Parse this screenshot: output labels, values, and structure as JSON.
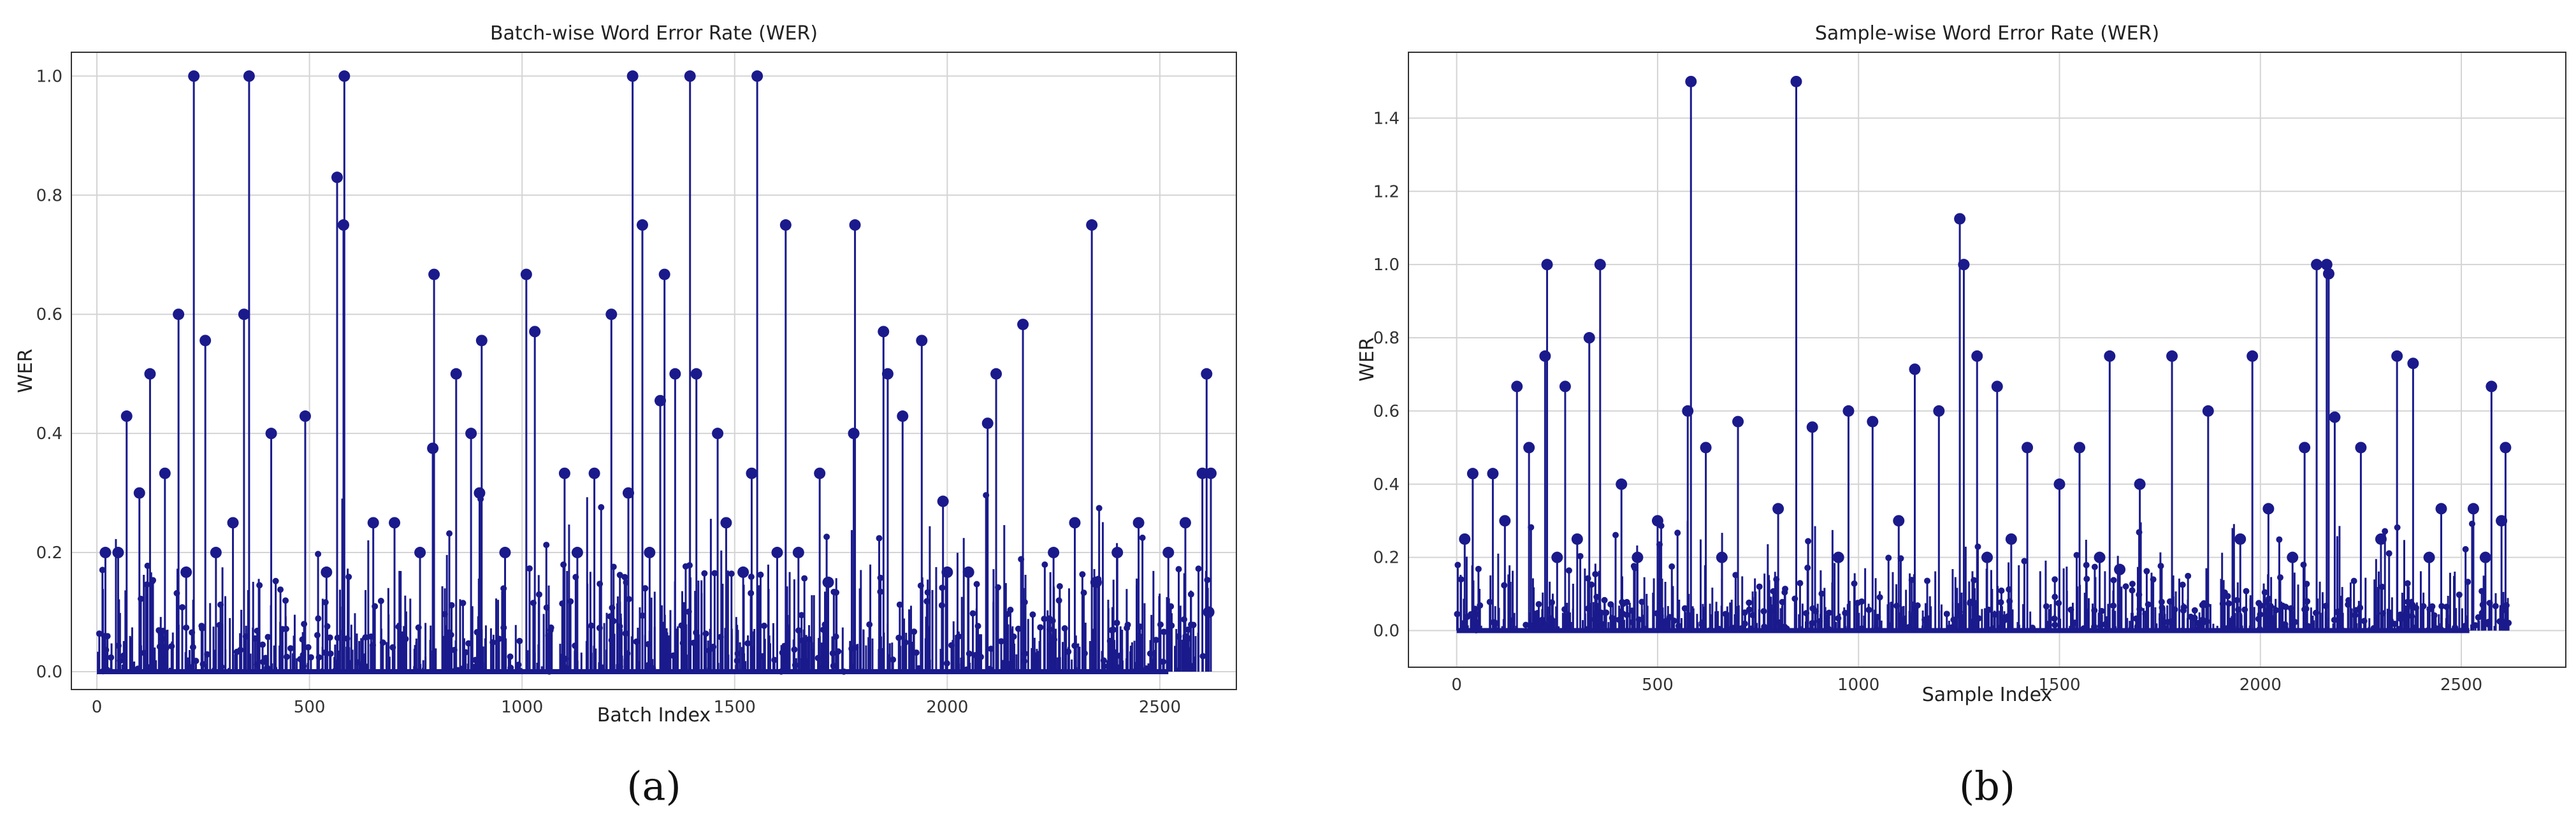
{
  "chart_data": [
    {
      "type": "scatter",
      "title": "Batch-wise Word Error Rate (WER)",
      "xlabel": "Batch Index",
      "ylabel": "WER",
      "xlim": [
        -60,
        2680
      ],
      "ylim": [
        -0.03,
        1.04
      ],
      "xticks": [
        0,
        500,
        1000,
        1500,
        2000,
        2500
      ],
      "yticks": [
        0.0,
        0.2,
        0.4,
        0.6,
        0.8,
        1.0
      ],
      "ytick_decimals": 1,
      "grid": true,
      "style": "stem",
      "color": "#1a1a8c",
      "caption": "(a)",
      "x": [
        228,
        358,
        582,
        1260,
        1395,
        1553,
        565,
        580,
        1283,
        1620,
        1783,
        2340,
        793,
        1010,
        1210,
        1335,
        2178,
        192,
        346,
        1850,
        1940,
        1030,
        1360,
        255,
        905,
        1410,
        1460,
        1860,
        2115,
        2610,
        125,
        845,
        880,
        1325,
        2095,
        70,
        1170,
        1895,
        790,
        1780,
        1250,
        1540,
        160,
        410,
        490,
        1100,
        1700,
        1990,
        2300,
        2560,
        100,
        320,
        700,
        960,
        1480,
        1650,
        2250,
        2450,
        2600,
        50,
        280,
        650,
        900,
        1300,
        1600,
        2000,
        2400,
        2620,
        20,
        210,
        540,
        760,
        1130,
        1520,
        1720,
        2050,
        2350,
        2520,
        2615
      ],
      "y": [
        1.0,
        1.0,
        1.0,
        1.0,
        1.0,
        1.0,
        0.83,
        0.75,
        0.75,
        0.75,
        0.75,
        0.75,
        0.667,
        0.667,
        0.6,
        0.667,
        0.583,
        0.6,
        0.6,
        0.571,
        0.556,
        0.571,
        0.5,
        0.556,
        0.556,
        0.5,
        0.4,
        0.5,
        0.5,
        0.5,
        0.5,
        0.5,
        0.4,
        0.455,
        0.417,
        0.429,
        0.333,
        0.429,
        0.375,
        0.4,
        0.3,
        0.333,
        0.333,
        0.4,
        0.429,
        0.333,
        0.333,
        0.286,
        0.25,
        0.25,
        0.3,
        0.25,
        0.25,
        0.2,
        0.25,
        0.2,
        0.2,
        0.25,
        0.333,
        0.2,
        0.2,
        0.25,
        0.3,
        0.2,
        0.2,
        0.167,
        0.2,
        0.333,
        0.2,
        0.167,
        0.167,
        0.2,
        0.2,
        0.167,
        0.15,
        0.167,
        0.15,
        0.2,
        0.1
      ]
    },
    {
      "type": "scatter",
      "title": "Sample-wise Word Error Rate (WER)",
      "xlabel": "Sample Index",
      "ylabel": "WER",
      "xlim": [
        -120,
        2760
      ],
      "ylim": [
        -0.1,
        1.58
      ],
      "xticks": [
        0,
        500,
        1000,
        1500,
        2000,
        2500
      ],
      "yticks": [
        0.0,
        0.2,
        0.4,
        0.6,
        0.8,
        1.0,
        1.2,
        1.4
      ],
      "ytick_decimals": 1,
      "grid": true,
      "style": "stem",
      "color": "#1a1a8c",
      "caption": "(b)",
      "x": [
        583,
        845,
        1252,
        225,
        357,
        1262,
        2140,
        2165,
        2170,
        330,
        1295,
        2340,
        220,
        1625,
        1780,
        1980,
        2380,
        270,
        575,
        1345,
        2575,
        1140,
        1200,
        150,
        975,
        1035,
        1550,
        1870,
        2185,
        2110,
        40,
        410,
        700,
        885,
        1420,
        2250,
        2610,
        90,
        180,
        620,
        1500,
        1700,
        2020,
        2450,
        2530,
        120,
        300,
        500,
        800,
        1100,
        1380,
        1600,
        1950,
        2300,
        2600,
        20,
        250,
        450,
        660,
        950,
        1320,
        1650,
        2080,
        2420,
        2560
      ],
      "y": [
        1.5,
        1.5,
        1.125,
        1.0,
        1.0,
        1.0,
        1.0,
        1.0,
        0.975,
        0.8,
        0.75,
        0.75,
        0.75,
        0.75,
        0.75,
        0.75,
        0.73,
        0.667,
        0.6,
        0.667,
        0.667,
        0.714,
        0.6,
        0.667,
        0.6,
        0.571,
        0.5,
        0.6,
        0.583,
        0.5,
        0.429,
        0.4,
        0.571,
        0.556,
        0.5,
        0.5,
        0.5,
        0.429,
        0.5,
        0.5,
        0.4,
        0.4,
        0.333,
        0.333,
        0.333,
        0.3,
        0.25,
        0.3,
        0.333,
        0.3,
        0.25,
        0.2,
        0.25,
        0.25,
        0.3,
        0.25,
        0.2,
        0.2,
        0.2,
        0.2,
        0.2,
        0.167,
        0.2,
        0.2,
        0.2
      ]
    }
  ]
}
